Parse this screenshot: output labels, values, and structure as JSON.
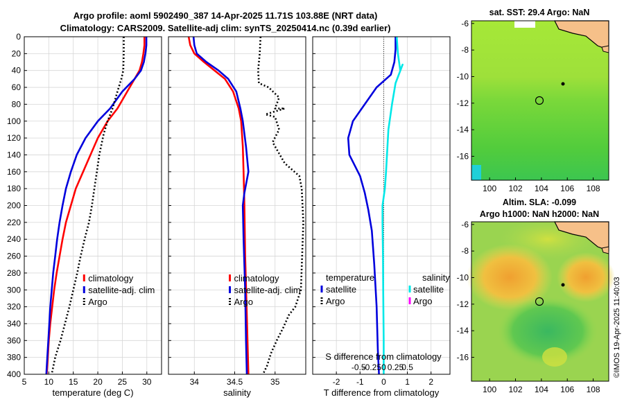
{
  "title": {
    "line1": "Argo profile: aoml 5902490_387 14-Apr-2025 11.71S 103.88E (NRT data)",
    "line2": "Climatology: CARS2009. Satellite-adj clim: synTS_20250414.nc (0.39d earlier)"
  },
  "copyright": "©IMOS 19-Apr-2025 11:40:03",
  "colors": {
    "climatology": "#ff0000",
    "satellite": "#0000dd",
    "argo": "#000000",
    "salinity_sat": "#00e8e8",
    "salinity_argo": "#ff00ff"
  },
  "chart_data": [
    {
      "type": "line",
      "id": "temperature",
      "xlabel": "temperature (deg C)",
      "ylabel": "",
      "xlim": [
        5,
        33
      ],
      "ylim": [
        0,
        400
      ],
      "y_inverted": true,
      "xticks": [
        5,
        10,
        15,
        20,
        25,
        30
      ],
      "yticks": [
        0,
        20,
        40,
        60,
        80,
        100,
        120,
        140,
        160,
        180,
        200,
        220,
        240,
        260,
        280,
        300,
        320,
        340,
        360,
        380,
        400
      ],
      "legend": [
        "climatology",
        "satellite-adj. clim",
        "Argo"
      ],
      "legend_position": "lower-right",
      "series": [
        {
          "name": "climatology",
          "style": "solid",
          "color": "#ff0000",
          "points": [
            [
              29.5,
              0
            ],
            [
              29.5,
              10
            ],
            [
              29.3,
              20
            ],
            [
              29.0,
              30
            ],
            [
              28.5,
              40
            ],
            [
              27.5,
              50
            ],
            [
              26.0,
              65
            ],
            [
              24.0,
              85
            ],
            [
              22.0,
              100
            ],
            [
              20.0,
              120
            ],
            [
              18.5,
              140
            ],
            [
              17.0,
              160
            ],
            [
              15.5,
              180
            ],
            [
              14.5,
              200
            ],
            [
              13.5,
              220
            ],
            [
              12.8,
              240
            ],
            [
              12.2,
              260
            ],
            [
              11.6,
              280
            ],
            [
              11.1,
              300
            ],
            [
              10.7,
              320
            ],
            [
              10.3,
              340
            ],
            [
              10.0,
              360
            ],
            [
              9.8,
              380
            ],
            [
              9.6,
              400
            ]
          ]
        },
        {
          "name": "satellite-adj. clim",
          "style": "solid",
          "color": "#0000dd",
          "points": [
            [
              29.9,
              0
            ],
            [
              29.9,
              10
            ],
            [
              29.7,
              20
            ],
            [
              29.4,
              30
            ],
            [
              28.8,
              40
            ],
            [
              27.5,
              50
            ],
            [
              25.0,
              65
            ],
            [
              22.5,
              85
            ],
            [
              20.0,
              100
            ],
            [
              17.5,
              120
            ],
            [
              15.7,
              140
            ],
            [
              14.5,
              160
            ],
            [
              13.5,
              180
            ],
            [
              12.8,
              200
            ],
            [
              12.2,
              220
            ],
            [
              11.7,
              240
            ],
            [
              11.3,
              260
            ],
            [
              10.9,
              280
            ],
            [
              10.6,
              300
            ],
            [
              10.3,
              320
            ],
            [
              10.1,
              340
            ],
            [
              9.9,
              360
            ],
            [
              9.7,
              380
            ],
            [
              9.5,
              400
            ]
          ]
        },
        {
          "name": "Argo",
          "style": "dotted",
          "color": "#000000",
          "points": [
            [
              25.3,
              0
            ],
            [
              25.3,
              20
            ],
            [
              25.2,
              40
            ],
            [
              24.8,
              50
            ],
            [
              24.0,
              65
            ],
            [
              23.0,
              85
            ],
            [
              22.0,
              100
            ],
            [
              21.2,
              115
            ],
            [
              20.3,
              140
            ],
            [
              19.8,
              160
            ],
            [
              19.3,
              180
            ],
            [
              18.8,
              200
            ],
            [
              18.2,
              220
            ],
            [
              17.3,
              240
            ],
            [
              16.5,
              260
            ],
            [
              15.8,
              280
            ],
            [
              15.0,
              300
            ],
            [
              14.2,
              320
            ],
            [
              13.3,
              340
            ],
            [
              12.4,
              360
            ],
            [
              11.3,
              380
            ],
            [
              10.6,
              400
            ]
          ]
        }
      ]
    },
    {
      "type": "line",
      "id": "salinity",
      "xlabel": "salinity",
      "ylabel": "",
      "xlim": [
        33.68,
        35.38
      ],
      "ylim": [
        0,
        400
      ],
      "y_inverted": true,
      "xticks": [
        34,
        34.5,
        35
      ],
      "legend": [
        "climatology",
        "satellite-adj. clim",
        "Argo"
      ],
      "legend_position": "lower-right",
      "series": [
        {
          "name": "climatology",
          "style": "solid",
          "color": "#ff0000",
          "points": [
            [
              33.93,
              0
            ],
            [
              33.95,
              10
            ],
            [
              34.0,
              20
            ],
            [
              34.12,
              30
            ],
            [
              34.25,
              40
            ],
            [
              34.38,
              50
            ],
            [
              34.48,
              65
            ],
            [
              34.55,
              85
            ],
            [
              34.58,
              100
            ],
            [
              34.6,
              130
            ],
            [
              34.61,
              160
            ],
            [
              34.62,
              200
            ],
            [
              34.63,
              260
            ],
            [
              34.65,
              330
            ],
            [
              34.67,
              400
            ]
          ]
        },
        {
          "name": "satellite-adj. clim",
          "style": "solid",
          "color": "#0000dd",
          "points": [
            [
              33.99,
              0
            ],
            [
              34.0,
              10
            ],
            [
              34.03,
              20
            ],
            [
              34.15,
              30
            ],
            [
              34.3,
              40
            ],
            [
              34.42,
              50
            ],
            [
              34.52,
              65
            ],
            [
              34.57,
              85
            ],
            [
              34.6,
              100
            ],
            [
              34.64,
              130
            ],
            [
              34.67,
              160
            ],
            [
              34.62,
              185
            ],
            [
              34.6,
              200
            ],
            [
              34.61,
              240
            ],
            [
              34.63,
              300
            ],
            [
              34.64,
              360
            ],
            [
              34.65,
              400
            ]
          ]
        },
        {
          "name": "Argo",
          "style": "dotted",
          "color": "#000000",
          "points": [
            [
              34.82,
              0
            ],
            [
              34.81,
              20
            ],
            [
              34.79,
              40
            ],
            [
              34.8,
              55
            ],
            [
              34.92,
              60
            ],
            [
              35.05,
              72
            ],
            [
              35.0,
              85
            ],
            [
              35.12,
              85
            ],
            [
              34.88,
              92
            ],
            [
              35.0,
              95
            ],
            [
              35.05,
              110
            ],
            [
              34.97,
              125
            ],
            [
              35.0,
              130
            ],
            [
              35.12,
              150
            ],
            [
              35.3,
              165
            ],
            [
              35.33,
              180
            ],
            [
              35.35,
              220
            ],
            [
              35.32,
              300
            ],
            [
              35.25,
              320
            ],
            [
              35.17,
              330
            ],
            [
              35.1,
              345
            ],
            [
              35.02,
              360
            ],
            [
              34.95,
              375
            ],
            [
              34.9,
              390
            ],
            [
              34.85,
              400
            ]
          ]
        }
      ]
    },
    {
      "type": "line",
      "id": "difference",
      "xlabel": "T difference from climatology",
      "xlabel2": "S difference from climatology",
      "xlim": [
        -3,
        2.8
      ],
      "ylim": [
        0,
        400
      ],
      "y_inverted": true,
      "xticks": [
        -2,
        -1,
        0,
        1,
        2
      ],
      "xticks_s": [
        "-0.5",
        "-0.25",
        "0",
        "0.25",
        "0.5"
      ],
      "legend_temperature_title": "temperature",
      "legend_salinity_title": "salinity",
      "legend_temperature": [
        "satellite",
        "Argo"
      ],
      "legend_salinity": [
        "satellite",
        "Argo"
      ],
      "series": [
        {
          "name": "temperature satellite",
          "style": "solid",
          "color": "#0000dd",
          "points": [
            [
              0.5,
              0
            ],
            [
              0.5,
              15
            ],
            [
              0.45,
              30
            ],
            [
              0.3,
              45
            ],
            [
              -0.3,
              60
            ],
            [
              -0.8,
              80
            ],
            [
              -1.3,
              100
            ],
            [
              -1.5,
              120
            ],
            [
              -1.45,
              140
            ],
            [
              -1.0,
              165
            ],
            [
              -0.8,
              185
            ],
            [
              -0.65,
              205
            ],
            [
              -0.5,
              230
            ],
            [
              -0.4,
              270
            ],
            [
              -0.3,
              320
            ],
            [
              -0.25,
              370
            ],
            [
              -0.2,
              400
            ]
          ]
        },
        {
          "name": "salinity satellite",
          "style": "solid",
          "color": "#00e8e8",
          "points": [
            [
              0.55,
              0
            ],
            [
              0.6,
              20
            ],
            [
              0.7,
              40
            ],
            [
              0.8,
              33
            ],
            [
              0.5,
              55
            ],
            [
              0.35,
              80
            ],
            [
              0.2,
              110
            ],
            [
              0.15,
              135
            ],
            [
              0.1,
              160
            ],
            [
              0.05,
              180
            ],
            [
              -0.05,
              200
            ],
            [
              -0.05,
              220
            ],
            [
              -0.03,
              260
            ],
            [
              -0.02,
              300
            ],
            [
              0.0,
              360
            ],
            [
              0.0,
              400
            ]
          ]
        }
      ]
    }
  ],
  "maps": {
    "sst": {
      "title": "sat. SST: 29.4 Argo: NaN",
      "yticks": [
        "-6",
        "-8",
        "-10",
        "-12",
        "-14",
        "-16"
      ],
      "xticks": [
        "100",
        "102",
        "104",
        "106",
        "108"
      ]
    },
    "sla": {
      "title1": "Altim. SLA: -0.099",
      "title2": "Argo h1000: NaN h2000: NaN",
      "yticks": [
        "-6",
        "-8",
        "-10",
        "-12",
        "-14",
        "-16"
      ],
      "xticks": [
        "100",
        "102",
        "104",
        "106",
        "108"
      ]
    }
  }
}
